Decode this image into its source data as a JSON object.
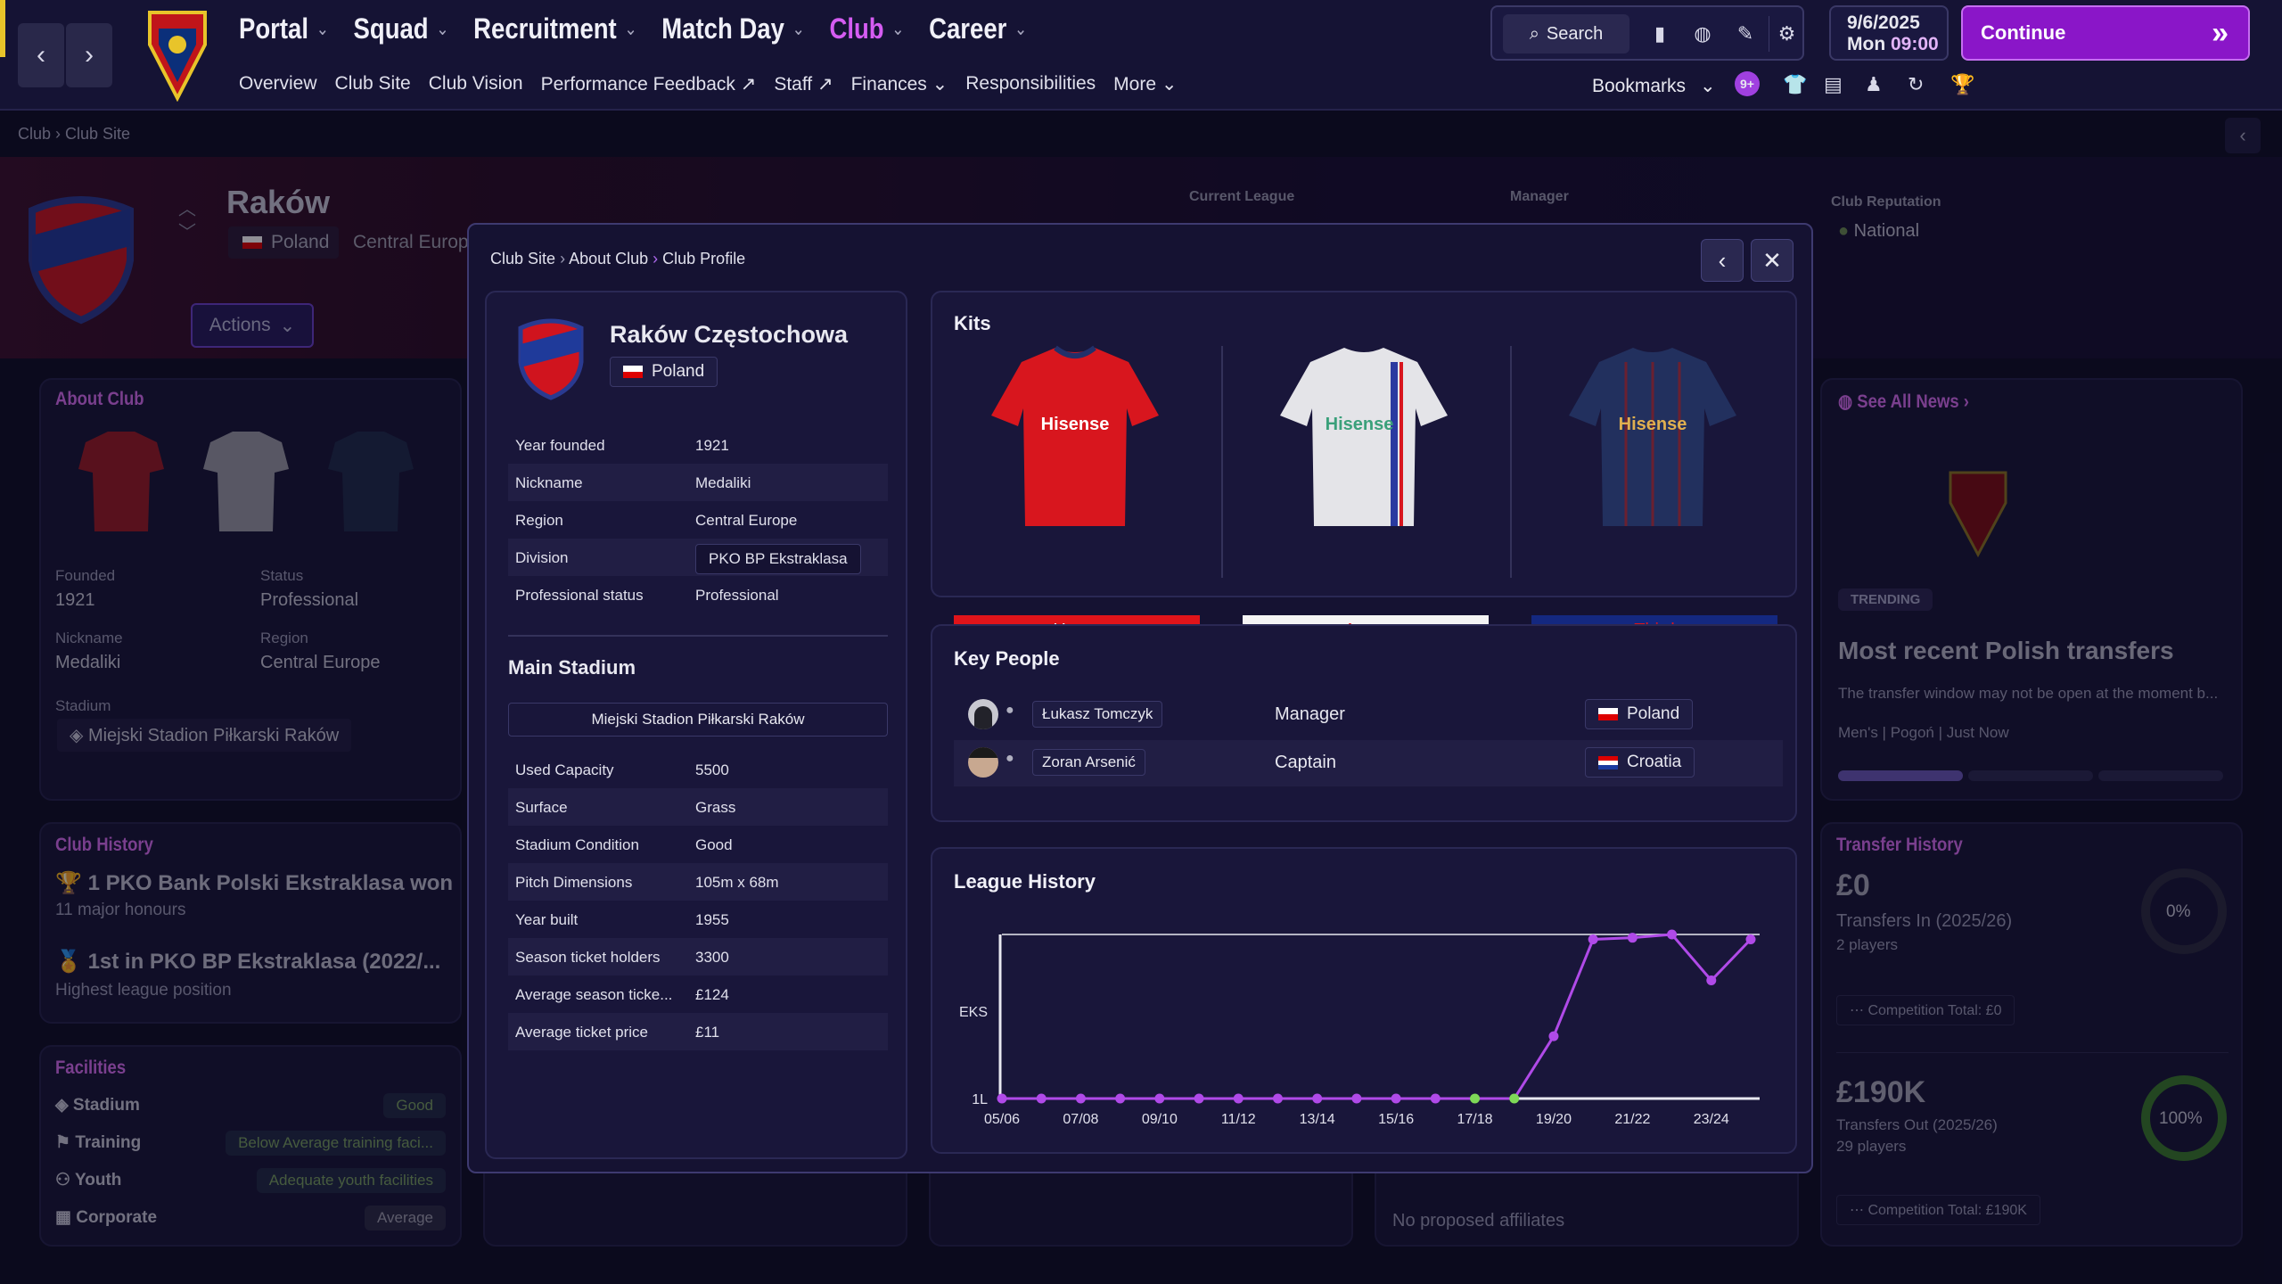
{
  "header": {
    "main_menu": [
      {
        "label": "Portal"
      },
      {
        "label": "Squad"
      },
      {
        "label": "Recruitment"
      },
      {
        "label": "Match Day"
      },
      {
        "label": "Club"
      },
      {
        "label": "Career"
      }
    ],
    "sub_menu": [
      "Overview",
      "Club Site",
      "Club Vision",
      "Performance Feedback",
      "Staff",
      "Finances",
      "Responsibilities",
      "More"
    ],
    "search_label": "Search",
    "date": "9/6/2025",
    "day": "Mon",
    "time": "09:00",
    "continue_label": "Continue",
    "bookmarks_label": "Bookmarks",
    "notification_count": "9+",
    "accent_color": "#d55cf2"
  },
  "breadcrumb": [
    "Club",
    "Club Site"
  ],
  "club": {
    "short_name": "Raków",
    "country": "Poland",
    "region": "Central Europe",
    "actions_label": "Actions",
    "current_league_label": "Current League",
    "manager_label": "Manager",
    "reputation_label": "Club Reputation",
    "reputation": "National"
  },
  "about_club": {
    "title": "About Club",
    "founded_label": "Founded",
    "founded": "1921",
    "status_label": "Status",
    "status": "Professional",
    "nickname_label": "Nickname",
    "nickname": "Medaliki",
    "region_label": "Region",
    "region": "Central Europe",
    "stadium_label": "Stadium",
    "stadium": "Miejski Stadion Piłkarski Raków"
  },
  "club_history": {
    "title": "Club History",
    "honours": "1 PKO Bank Polski Ekstraklasa won",
    "honours_sub": "11  major honours",
    "best_pos": "1st in PKO BP Ekstraklasa (2022/...",
    "best_pos_sub": "Highest league position"
  },
  "facilities": {
    "title": "Facilities",
    "items": [
      {
        "label": "Stadium",
        "rating": "Good"
      },
      {
        "label": "Training",
        "rating": "Below Average training faci..."
      },
      {
        "label": "Youth",
        "rating": "Adequate youth facilities"
      },
      {
        "label": "Corporate",
        "rating": "Average"
      }
    ]
  },
  "news": {
    "see_all": "See All News",
    "tag": "TRENDING",
    "headline": "Most recent Polish transfers",
    "snippet": "The transfer window may not be open at the moment b...",
    "meta": [
      "Men's",
      "Pogoń",
      "Just Now"
    ]
  },
  "transfer_history": {
    "title": "Transfer History",
    "in_amount": "£0",
    "in_label": "Transfers In (2025/26)",
    "in_players": "2 players",
    "in_pct": "0%",
    "in_comp": "Competition Total: £0",
    "out_amount": "£190K",
    "out_label": "Transfers Out (2025/26)",
    "out_players": "29 players",
    "out_pct": "100%",
    "out_comp": "Competition Total: £190K"
  },
  "affiliates": {
    "empty": "No proposed affiliates"
  },
  "modal": {
    "breadcrumb": [
      "Club Site",
      "About Club",
      "Club Profile"
    ],
    "profile": {
      "name": "Raków Częstochowa",
      "country": "Poland",
      "rows": [
        {
          "k": "Year founded",
          "v": "1921"
        },
        {
          "k": "Nickname",
          "v": "Medaliki"
        },
        {
          "k": "Region",
          "v": "Central Europe"
        },
        {
          "k": "Division",
          "v": "PKO BP Ekstraklasa"
        },
        {
          "k": "Professional status",
          "v": "Professional"
        }
      ],
      "stadium_title": "Main Stadium",
      "stadium_name": "Miejski Stadion Piłkarski Raków",
      "stadium_rows": [
        {
          "k": "Used Capacity",
          "v": "5500"
        },
        {
          "k": "Surface",
          "v": "Grass"
        },
        {
          "k": "Stadium Condition",
          "v": "Good"
        },
        {
          "k": "Pitch Dimensions",
          "v": "105m x 68m"
        },
        {
          "k": "Year built",
          "v": "1955"
        },
        {
          "k": "Season ticket holders",
          "v": "3300"
        },
        {
          "k": "Average season ticke...",
          "v": "£124"
        },
        {
          "k": "Average ticket price",
          "v": "£11"
        }
      ]
    },
    "kits": {
      "title": "Kits",
      "sponsor": "Hisense",
      "items": [
        {
          "label": "Home",
          "bg": "#e0141a",
          "fg": "#ffffff"
        },
        {
          "label": "Away",
          "bg": "#f4f4f4",
          "fg": "#e0141a"
        },
        {
          "label": "Third",
          "bg": "#142880",
          "fg": "#e0141a"
        }
      ]
    },
    "key_people": {
      "title": "Key People",
      "people": [
        {
          "name": "Łukasz Tomczyk",
          "role": "Manager",
          "country": "Poland"
        },
        {
          "name": "Zoran Arsenić",
          "role": "Captain",
          "country": "Croatia"
        }
      ]
    },
    "league_history": {
      "title": "League History"
    }
  },
  "chart_data": {
    "type": "line",
    "title": "League History",
    "x": [
      "05/06",
      "06/07",
      "07/08",
      "08/09",
      "09/10",
      "10/11",
      "11/12",
      "12/13",
      "13/14",
      "14/15",
      "15/16",
      "16/17",
      "17/18",
      "18/19",
      "19/20",
      "20/21",
      "21/22",
      "22/23",
      "23/24",
      "24/25"
    ],
    "xtick_labels": [
      "05/06",
      "07/08",
      "09/10",
      "11/12",
      "13/14",
      "15/16",
      "17/18",
      "19/20",
      "21/22",
      "23/24"
    ],
    "ytick_labels": [
      "EKS",
      "1L"
    ],
    "y_level": [
      0,
      0,
      0,
      0,
      0,
      0,
      0,
      0,
      0,
      0,
      0,
      0,
      0,
      0,
      0.38,
      0.97,
      0.98,
      1.0,
      0.72,
      0.97
    ],
    "promoted_points": [
      "17/18",
      "18/19"
    ],
    "line_color": "#b04ae8",
    "promoted_color": "#7ed957"
  }
}
